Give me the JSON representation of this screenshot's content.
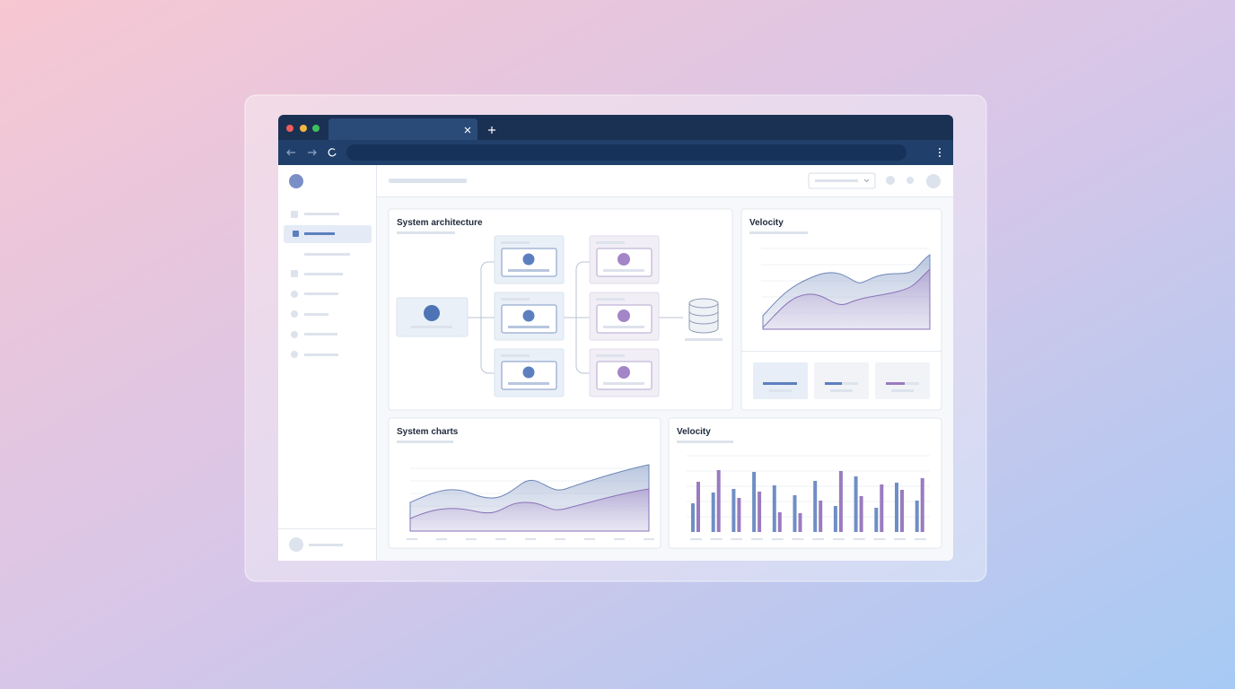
{
  "panels": [
    {
      "title": "System architecture"
    },
    {
      "title": "Velocity"
    },
    {
      "title": "System charts"
    },
    {
      "title": "Velocity"
    }
  ]
}
